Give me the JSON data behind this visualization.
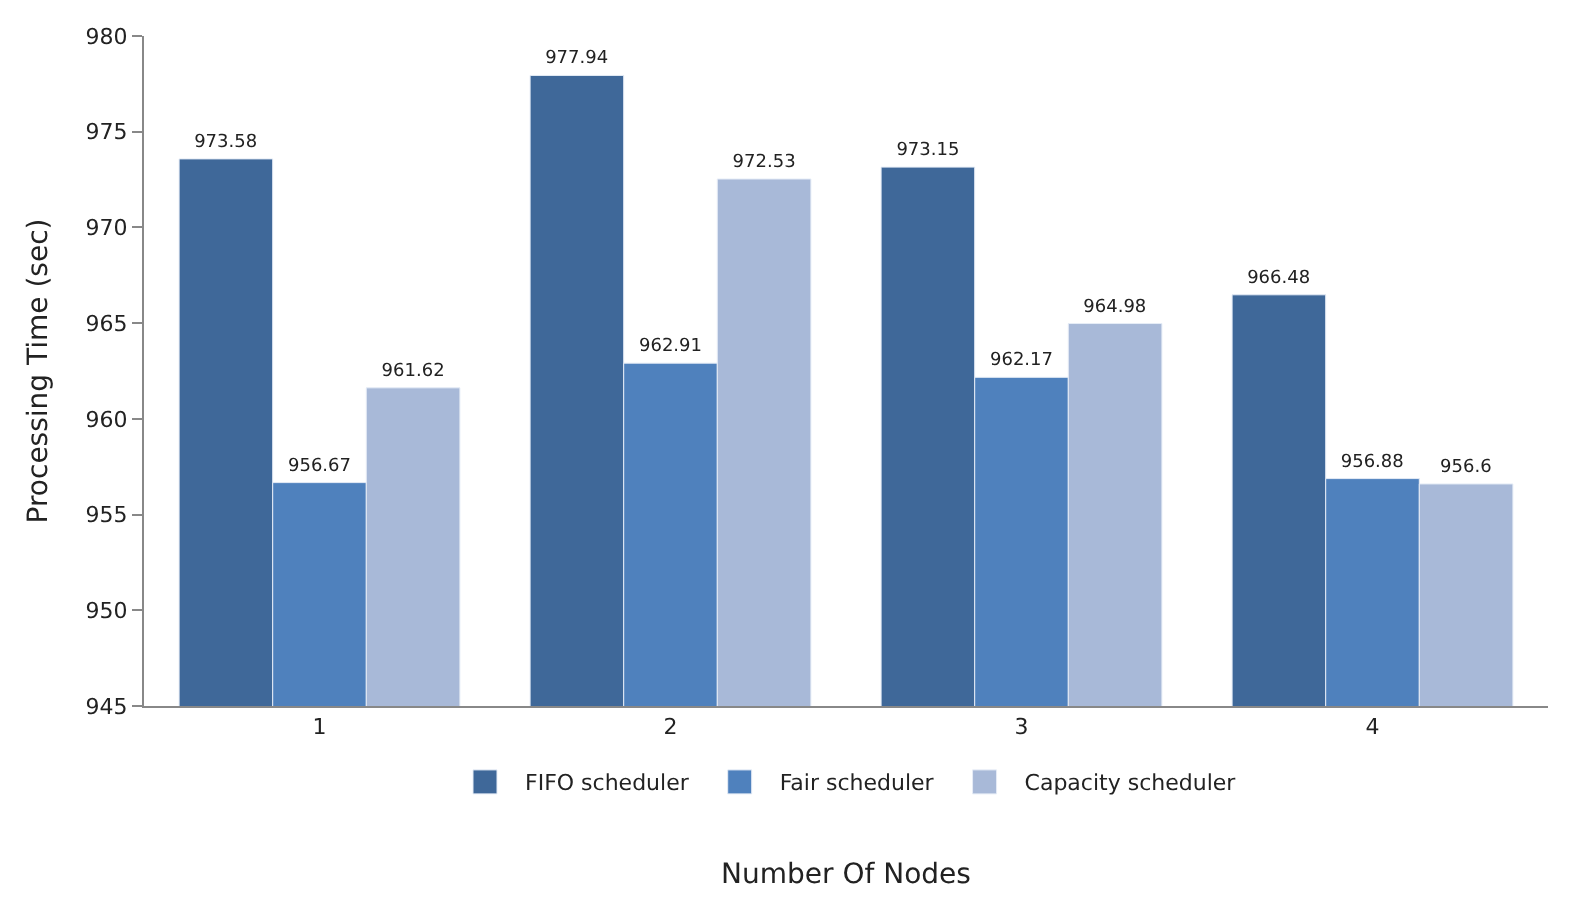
{
  "chart_data": {
    "type": "bar",
    "xlabel": "Number Of Nodes",
    "ylabel": "Processing Time (sec)",
    "categories": [
      "1",
      "2",
      "3",
      "4"
    ],
    "series": [
      {
        "name": "FIFO scheduler",
        "color": "#3f6899",
        "values": [
          973.58,
          977.94,
          973.15,
          966.48
        ]
      },
      {
        "name": "Fair scheduler",
        "color": "#4f81bd",
        "values": [
          956.67,
          962.91,
          962.17,
          956.88
        ]
      },
      {
        "name": "Capacity scheduler",
        "color": "#a8b9d8",
        "values": [
          961.62,
          972.53,
          964.98,
          956.6
        ]
      }
    ],
    "ylim": [
      945,
      980
    ],
    "yticks": [
      945,
      950,
      955,
      960,
      965,
      970,
      975,
      980
    ],
    "data_labels": true,
    "legend": "bottom"
  }
}
